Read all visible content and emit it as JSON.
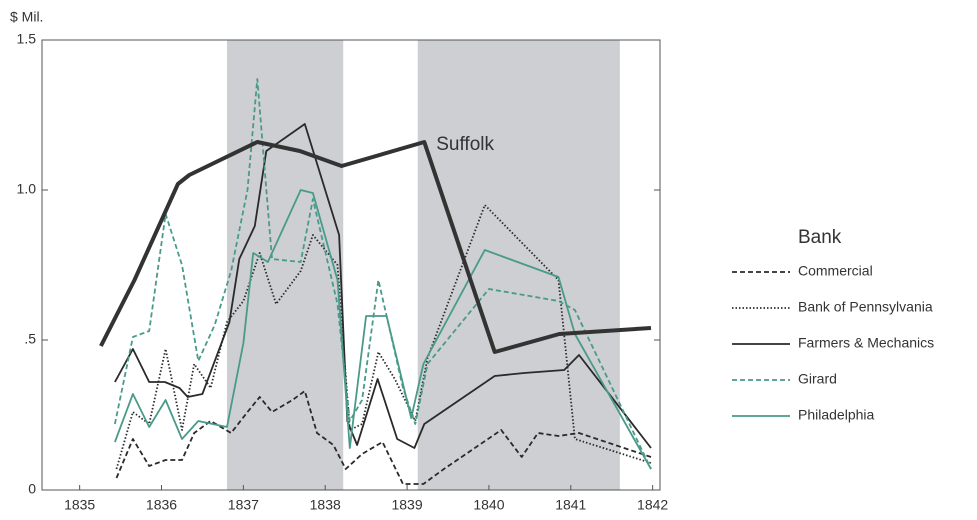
{
  "chart_data": {
    "type": "line",
    "y_label": "$ Mil.",
    "annotation": "Suffolk",
    "legend_title": "Bank",
    "legend": "right",
    "xlim": [
      1834.54,
      1842.09
    ],
    "ylim": [
      0,
      1.5
    ],
    "xticks": [
      1835,
      1836,
      1837,
      1838,
      1839,
      1840,
      1841,
      1842
    ],
    "yticks": [
      0,
      {
        "value": 0.5,
        "label": ".5"
      },
      {
        "value": 1,
        "label": "1.0"
      },
      {
        "value": 1.5,
        "label": "1.5"
      }
    ],
    "shaded_periods": [
      [
        1836.8,
        1838.22
      ],
      [
        1839.13,
        1841.6
      ]
    ],
    "shade_color": "#cdcfd3",
    "series": [
      {
        "name": "Commercial",
        "color": "#2a2a2a",
        "style": "dashed",
        "width": 1.8,
        "x": [
          1835.45,
          1835.65,
          1835.85,
          1836.05,
          1836.25,
          1836.4,
          1836.6,
          1836.85,
          1837.05,
          1837.2,
          1837.35,
          1837.6,
          1837.75,
          1837.9,
          1838.1,
          1838.25,
          1838.45,
          1838.7,
          1838.95,
          1839.2,
          1839.45,
          1840.15,
          1840.4,
          1840.6,
          1840.85,
          1841.1,
          1841.98
        ],
        "values": [
          0.04,
          0.17,
          0.08,
          0.1,
          0.1,
          0.19,
          0.23,
          0.19,
          0.26,
          0.31,
          0.26,
          0.3,
          0.33,
          0.19,
          0.15,
          0.07,
          0.12,
          0.16,
          0.02,
          0.02,
          0.07,
          0.2,
          0.11,
          0.19,
          0.18,
          0.19,
          0.11
        ]
      },
      {
        "name": "Bank of Pennsylvania",
        "color": "#2a2a2a",
        "style": "dotted",
        "width": 1.8,
        "x": [
          1835.45,
          1835.65,
          1835.85,
          1836.05,
          1836.25,
          1836.4,
          1836.6,
          1836.8,
          1837.0,
          1837.2,
          1837.4,
          1837.7,
          1837.85,
          1838.15,
          1838.3,
          1838.45,
          1838.65,
          1838.85,
          1839.1,
          1839.25,
          1839.95,
          1840.85,
          1841.05,
          1841.98
        ],
        "values": [
          0.07,
          0.26,
          0.22,
          0.47,
          0.2,
          0.42,
          0.34,
          0.56,
          0.63,
          0.79,
          0.62,
          0.73,
          0.85,
          0.75,
          0.2,
          0.22,
          0.46,
          0.37,
          0.23,
          0.44,
          0.95,
          0.7,
          0.17,
          0.09
        ]
      },
      {
        "name": "Farmers & Mechanics",
        "color": "#2a2a2a",
        "style": "solid",
        "width": 1.8,
        "x": [
          1835.43,
          1835.65,
          1835.85,
          1836.04,
          1836.22,
          1836.32,
          1836.5,
          1836.83,
          1836.95,
          1837.14,
          1837.28,
          1837.75,
          1838.17,
          1838.27,
          1838.39,
          1838.64,
          1838.88,
          1839.09,
          1839.21,
          1840.07,
          1840.43,
          1840.92,
          1841.1,
          1841.98
        ],
        "values": [
          0.36,
          0.47,
          0.36,
          0.36,
          0.34,
          0.31,
          0.32,
          0.56,
          0.77,
          0.88,
          1.13,
          1.22,
          0.85,
          0.23,
          0.15,
          0.37,
          0.17,
          0.14,
          0.22,
          0.38,
          0.39,
          0.4,
          0.45,
          0.14
        ]
      },
      {
        "name": "Girard",
        "color": "#4a9a8a",
        "style": "dashed",
        "width": 1.8,
        "x": [
          1835.43,
          1835.65,
          1835.85,
          1836.05,
          1836.25,
          1836.45,
          1836.65,
          1836.85,
          1837.05,
          1837.17,
          1837.35,
          1837.7,
          1837.85,
          1838.15,
          1838.3,
          1838.45,
          1838.65,
          1838.95,
          1839.1,
          1839.25,
          1840.0,
          1840.85,
          1841.05,
          1841.98
        ],
        "values": [
          0.22,
          0.51,
          0.53,
          0.92,
          0.75,
          0.43,
          0.55,
          0.73,
          1.0,
          1.37,
          0.77,
          0.76,
          0.97,
          0.62,
          0.23,
          0.3,
          0.7,
          0.34,
          0.22,
          0.42,
          0.67,
          0.63,
          0.6,
          0.07
        ]
      },
      {
        "name": "Philadelphia",
        "color": "#4a9a8a",
        "style": "solid",
        "width": 1.8,
        "x": [
          1835.43,
          1835.65,
          1835.85,
          1836.05,
          1836.25,
          1836.45,
          1836.8,
          1837.0,
          1837.12,
          1837.3,
          1837.7,
          1837.85,
          1838.15,
          1838.3,
          1838.5,
          1838.75,
          1839.05,
          1839.2,
          1839.95,
          1840.85,
          1841.05,
          1841.98
        ],
        "values": [
          0.16,
          0.32,
          0.21,
          0.3,
          0.17,
          0.23,
          0.21,
          0.49,
          0.79,
          0.76,
          1.0,
          0.99,
          0.7,
          0.14,
          0.58,
          0.58,
          0.24,
          0.42,
          0.8,
          0.71,
          0.52,
          0.07
        ]
      },
      {
        "name": "Suffolk",
        "color": "#333333",
        "style": "solid",
        "width": 4,
        "in_legend": false,
        "x": [
          1835.26,
          1835.67,
          1836.2,
          1836.34,
          1837.17,
          1837.69,
          1838.2,
          1839.21,
          1840.07,
          1840.86,
          1841.98
        ],
        "values": [
          0.48,
          0.7,
          1.02,
          1.05,
          1.16,
          1.13,
          1.08,
          1.16,
          0.46,
          0.52,
          0.54
        ]
      }
    ]
  }
}
